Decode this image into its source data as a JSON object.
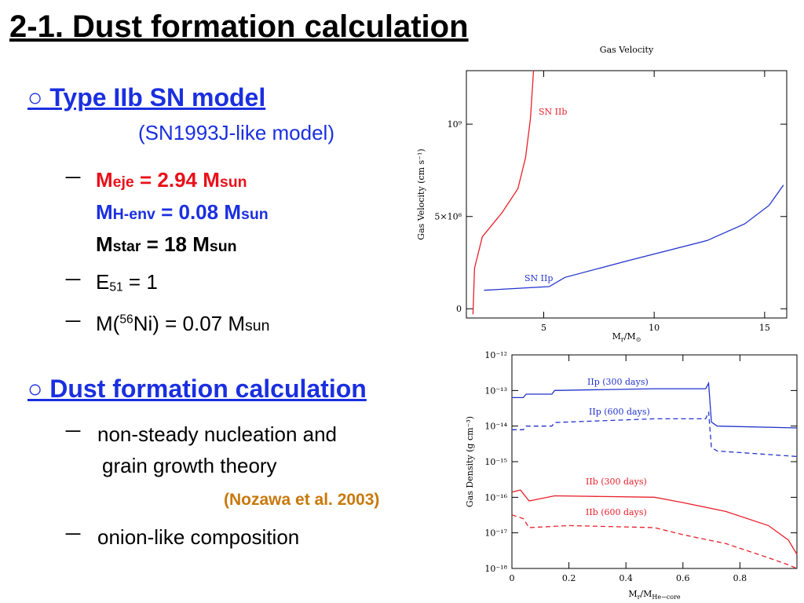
{
  "title": "2-1. Dust formation calculation",
  "bullet": "－",
  "section1": {
    "heading": "○ Type IIb SN model",
    "subheading": "(SN1993J-like model)",
    "m_eje": [
      "M",
      "eje",
      " = 2.94 M",
      "sun"
    ],
    "m_henv": [
      "M",
      "H-env",
      " = 0.08 M",
      "sun"
    ],
    "m_star": [
      "M",
      "star",
      " = 18 M",
      "sun"
    ],
    "energy": [
      "E",
      "51",
      " = 1"
    ],
    "nickel": [
      "M(",
      "56",
      "Ni) = 0.07 M",
      "sun"
    ]
  },
  "section2": {
    "heading": "○ Dust formation calculation",
    "item1": [
      "non-steady nucleation and",
      "grain growth theory"
    ],
    "reference": "(Nozawa et al. 2003)",
    "item2": "onion-like composition"
  },
  "chart_data": [
    {
      "type": "line",
      "title": "Gas Velocity",
      "ylabel": "Gas Velocity (cm s⁻¹)",
      "xlabel": [
        "M",
        "r",
        "/M",
        "⊙"
      ],
      "xlim": [
        1.5,
        16
      ],
      "ylim": [
        -50000000,
        1290000000
      ],
      "xticks": [
        5,
        10,
        15
      ],
      "yticks": [
        0,
        {
          "value": 500000000,
          "label": "5×10⁸"
        },
        {
          "value": 1000000000,
          "label": "10⁹"
        }
      ],
      "log_y": false,
      "series": [
        {
          "name": "SN IIb",
          "color": "#e8202a",
          "dashed": false,
          "x": [
            1.8,
            1.87,
            2.22,
            3.11,
            3.83,
            4.18,
            4.4,
            4.54
          ],
          "values": [
            -30000000,
            220000000,
            390000000,
            520000000,
            650000000,
            820000000,
            1030000000,
            1290000000
          ]
        },
        {
          "name": "SN IIp",
          "color": "#2233cc",
          "dashed": false,
          "x": [
            2.3,
            5.25,
            5.96,
            8.8,
            12.4,
            14.1,
            15.2,
            15.85
          ],
          "values": [
            100000000,
            120000000,
            170000000,
            260000000,
            370000000,
            460000000,
            560000000,
            670000000
          ]
        }
      ]
    },
    {
      "type": "line",
      "ylabel": "Gas Density (g cm⁻³)",
      "xlabel": [
        "M",
        "r",
        "/M",
        "He−core"
      ],
      "xlim": [
        0,
        1
      ],
      "ylim": [
        1e-18,
        1e-12
      ],
      "xticks": [
        0,
        0.2,
        0.4,
        0.6,
        0.8
      ],
      "yticks": [
        {
          "value": 1e-18,
          "label": "10⁻¹⁸"
        },
        {
          "value": 1e-17,
          "label": "10⁻¹⁷"
        },
        {
          "value": 1e-16,
          "label": "10⁻¹⁶"
        },
        {
          "value": 1e-15,
          "label": "10⁻¹⁵"
        },
        {
          "value": 1e-14,
          "label": "10⁻¹⁴"
        },
        {
          "value": 1e-13,
          "label": "10⁻¹³"
        },
        {
          "value": 1e-12,
          "label": "10⁻¹²"
        }
      ],
      "log_y": true,
      "series": [
        {
          "name": "IIp (300 days)",
          "color": "#2233cc",
          "dashed": false,
          "x": [
            0,
            0.04,
            0.05,
            0.14,
            0.15,
            0.5,
            0.68,
            0.69,
            0.7,
            0.72,
            1.0
          ],
          "values": [
            6.3e-14,
            6.3e-14,
            7.9e-14,
            7.9e-14,
            1e-13,
            1.12e-13,
            1.12e-13,
            1.6e-13,
            1.3e-14,
            1e-14,
            8.9e-15
          ]
        },
        {
          "name": "IIp (600 days)",
          "color": "#2233cc",
          "dashed": true,
          "x": [
            0,
            0.04,
            0.05,
            0.14,
            0.15,
            0.5,
            0.68,
            0.69,
            0.7,
            0.72,
            1.0
          ],
          "values": [
            7.9e-15,
            7.9e-15,
            1e-14,
            1e-14,
            1.26e-14,
            1.6e-14,
            1.6e-14,
            2.5e-14,
            2.5e-15,
            2e-15,
            1.4e-15
          ]
        },
        {
          "name": "IIb (300 days)",
          "color": "#e8202a",
          "dashed": false,
          "x": [
            0,
            0.03,
            0.06,
            0.15,
            0.5,
            0.6,
            0.75,
            0.9,
            0.97,
            1.0
          ],
          "values": [
            1.4e-16,
            1.6e-16,
            7.9e-17,
            1.1e-16,
            1e-16,
            7.1e-17,
            4e-17,
            1.6e-17,
            6.3e-18,
            2.5e-18
          ]
        },
        {
          "name": "IIb (600 days)",
          "color": "#e8202a",
          "dashed": true,
          "x": [
            0,
            0.04,
            0.06,
            0.2,
            0.5,
            0.6,
            0.75,
            0.9,
            0.97,
            1.0
          ],
          "values": [
            3.2e-17,
            2.5e-17,
            1.4e-17,
            1.6e-17,
            1.4e-17,
            8.9e-18,
            5e-18,
            2e-18,
            1.26e-18,
            1e-18
          ]
        }
      ]
    }
  ]
}
